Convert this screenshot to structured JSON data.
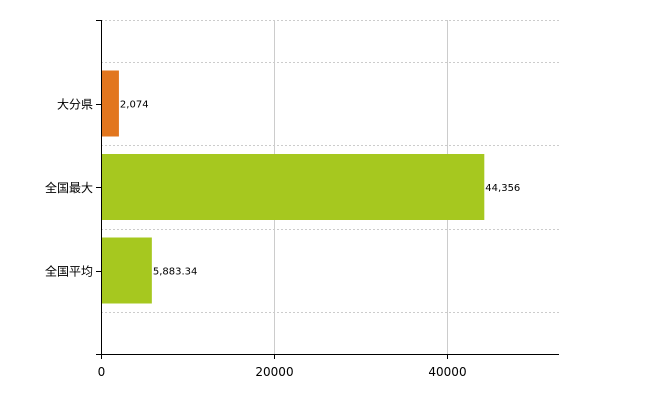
{
  "chart_data": {
    "type": "bar",
    "orientation": "horizontal",
    "categories": [
      "大分県",
      "全国最大",
      "全国平均"
    ],
    "values": [
      2074,
      44356,
      5883.34
    ],
    "value_labels": [
      "2,074",
      "44,356",
      "5,883.34"
    ],
    "bar_colors": [
      "#e2761e",
      "#a6c81f",
      "#a6c81f"
    ],
    "xlim": [
      0,
      53000
    ],
    "x_ticks": [
      0,
      20000,
      40000
    ],
    "x_tick_labels": [
      "0",
      "20000",
      "40000"
    ],
    "grid": true,
    "legend": false
  }
}
